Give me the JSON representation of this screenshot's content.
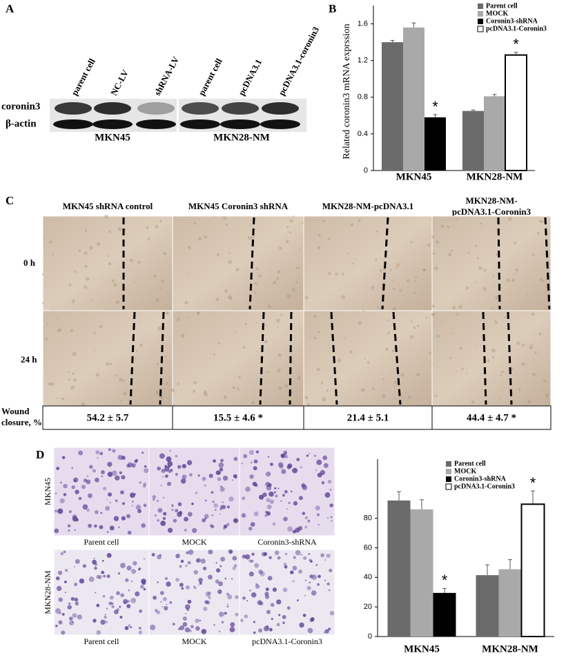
{
  "panel_labels": [
    "A",
    "B",
    "C",
    "D"
  ],
  "blot": {
    "lanes": [
      "parent cell",
      "NC-LV",
      "shRNA-LV",
      "parent cell",
      "pcDNA3.1",
      "pcDNA3.1-coronin3"
    ],
    "rows": [
      "coronin3",
      "β-actin"
    ],
    "groups": [
      "MKN45",
      "MKN28-NM"
    ]
  },
  "wound": {
    "headers": [
      [
        "MKN45 shRNA control"
      ],
      [
        "MKN45 Coronin3 shRNA"
      ],
      [
        "MKN28-NM-pcDNA3.1"
      ],
      [
        "MKN28-NM-",
        "pcDNA3.1-Coronin3"
      ]
    ],
    "rows": [
      "0 h",
      "24 h"
    ],
    "closure_label": [
      "Wound",
      "closure, %"
    ],
    "closure": [
      "54.2 ± 5.7",
      "15.5 ± 4.6 *",
      "21.4 ± 5.1",
      "44.4 ± 4.7 *"
    ]
  },
  "transwell": {
    "rows": [
      "MKN45",
      "MKN28-NM"
    ],
    "captions": [
      [
        "Parent cell",
        "MOCK",
        "Coronin3-shRNA"
      ],
      [
        "Parent cell",
        "MOCK",
        "pcDNA3.1-Coronin3"
      ]
    ]
  },
  "chart_data": [
    {
      "type": "bar",
      "ylabel": "Related coronin3 mRNA exprssion",
      "categories": [
        "MKN45",
        "MKN28-NM"
      ],
      "series": [
        {
          "name": "Parent cell",
          "color": "#6b6b6b",
          "values": [
            1.4,
            0.65
          ],
          "errors": [
            0.02,
            0.01
          ]
        },
        {
          "name": "MOCK",
          "color": "#a9a9a9",
          "values": [
            1.56,
            0.81
          ],
          "errors": [
            0.05,
            0.02
          ]
        },
        {
          "name": "Coronin3-shRNA",
          "color": "#000000",
          "values": [
            0.58,
            null
          ],
          "errors": [
            0.03,
            null
          ]
        },
        {
          "name": "pcDNA3.1-Coronin3",
          "color": "#ffffff",
          "edgecolor": "#000000",
          "values": [
            null,
            1.26
          ],
          "errors": [
            null,
            0.03
          ]
        }
      ],
      "annotations": [
        "*",
        "*"
      ],
      "ylim": [
        0,
        1.8
      ],
      "yticks": [
        0,
        0.4,
        0.8,
        1.2,
        1.6
      ],
      "legend": "upper right"
    },
    {
      "type": "bar",
      "categories": [
        "MKN45",
        "MKN28-NM"
      ],
      "series": [
        {
          "name": "Parent cell",
          "color": "#6b6b6b",
          "values": [
            92,
            41.5
          ],
          "errors": [
            6,
            7
          ]
        },
        {
          "name": "MOCK",
          "color": "#a9a9a9",
          "values": [
            86,
            45.5
          ],
          "errors": [
            6.5,
            6.5
          ]
        },
        {
          "name": "Coronin3-shRNA",
          "color": "#000000",
          "values": [
            29.5,
            null
          ],
          "errors": [
            3,
            null
          ]
        },
        {
          "name": "pcDNA3.1-Coronin3",
          "color": "#ffffff",
          "edgecolor": "#000000",
          "values": [
            null,
            89.5
          ],
          "errors": [
            null,
            9
          ]
        }
      ],
      "annotations": [
        "*",
        "*"
      ],
      "ylim": [
        0,
        120
      ],
      "yticks": [
        0,
        20,
        40,
        60,
        80
      ],
      "legend": "upper right"
    }
  ]
}
